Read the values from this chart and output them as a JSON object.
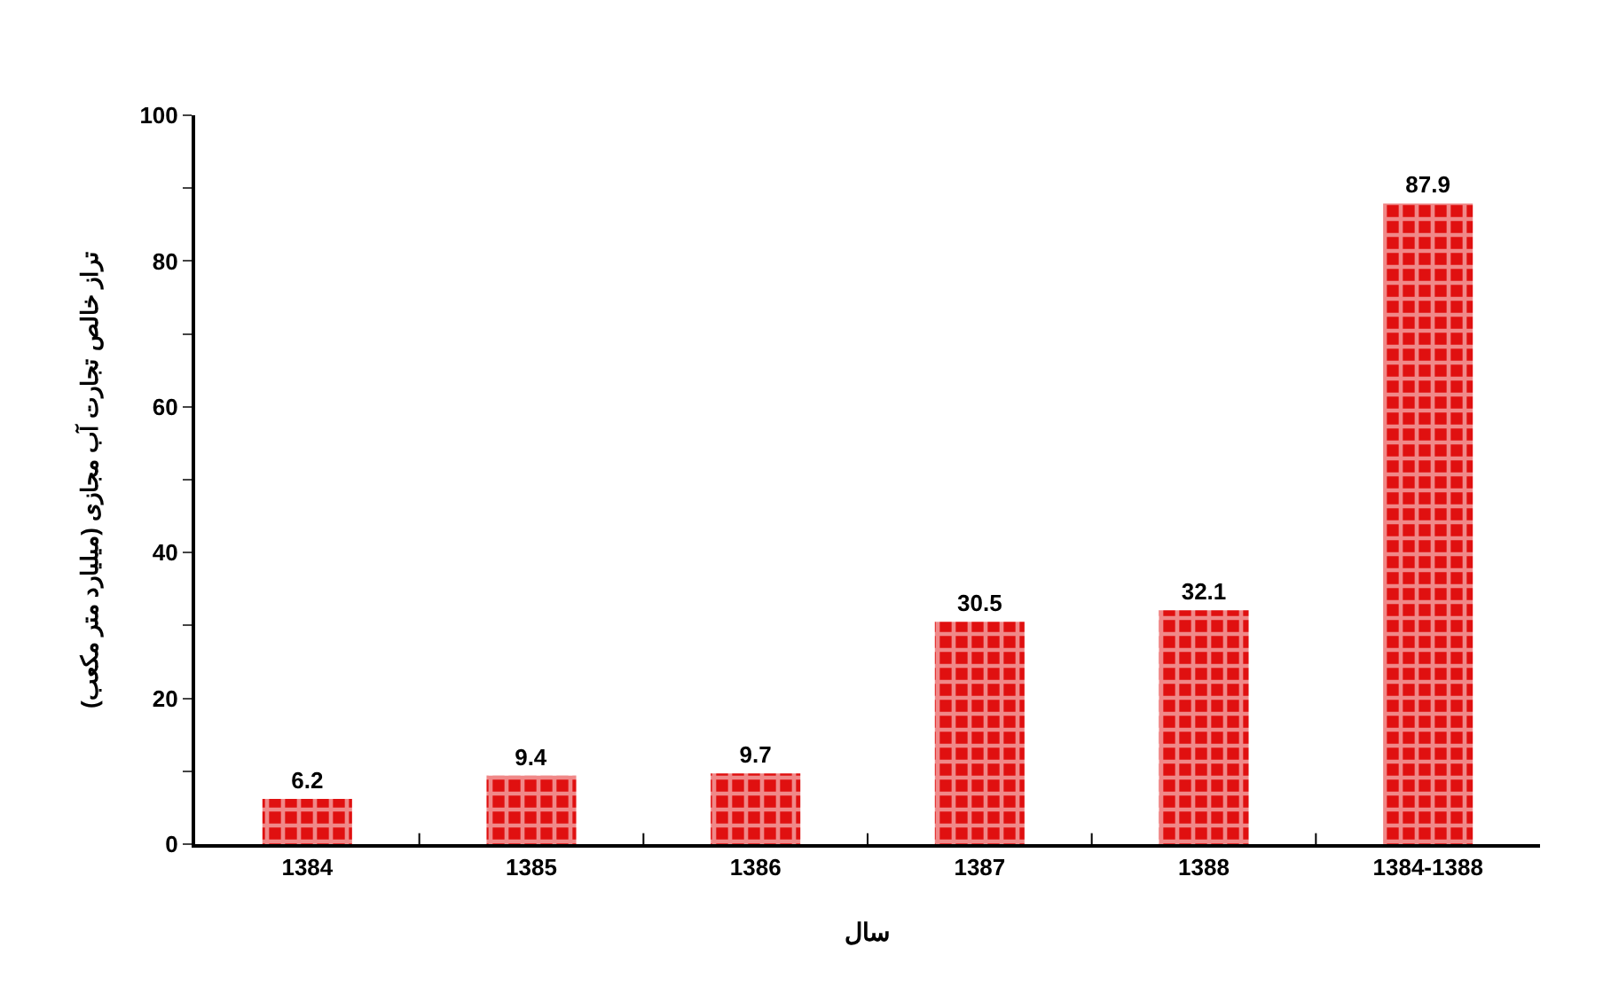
{
  "chart_data": {
    "type": "bar",
    "xlabel": "سال",
    "ylabel": "تراز خالص تجارت آب مجازی (میلیارد متر مکعب)",
    "categories": [
      "1384",
      "1385",
      "1386",
      "1387",
      "1388",
      "1384-1388"
    ],
    "values": [
      6.2,
      9.4,
      9.7,
      30.5,
      32.1,
      87.9
    ],
    "color": "#e01010",
    "data_labels": true,
    "ylim": [
      0,
      100
    ],
    "yticks": [
      0,
      {
        "value": 10,
        "label": null
      },
      20,
      {
        "value": 30,
        "label": null
      },
      40,
      {
        "value": 50,
        "label": null
      },
      60,
      {
        "value": 70,
        "label": null
      },
      80,
      {
        "value": 90,
        "label": null
      },
      100
    ]
  }
}
